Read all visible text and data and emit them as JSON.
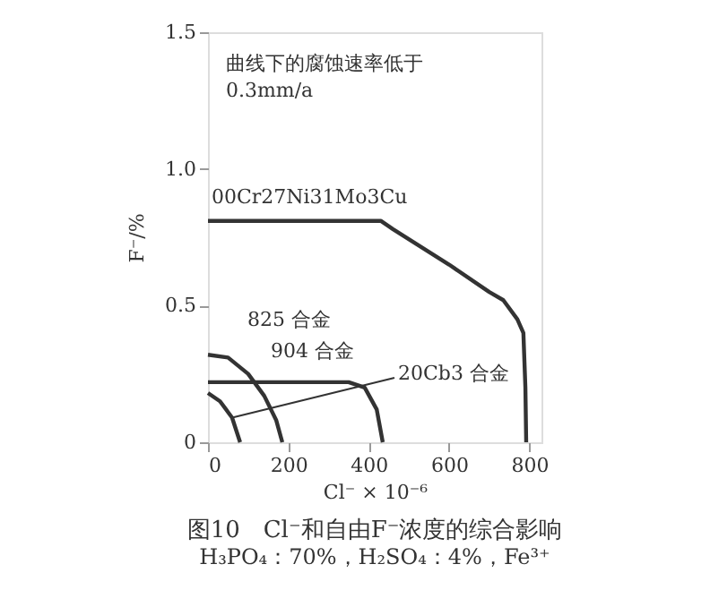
{
  "chart_data": {
    "type": "line",
    "title": "图10　Cl⁻和自由F⁻浓度的综合影响",
    "subtitle": "H₃PO₄：70%，H₂SO₄：4%，Fe³⁺",
    "xlabel": "Cl⁻ × 10⁻⁶",
    "ylabel": "F⁻/%",
    "annotations": [
      "曲线下的腐蚀速率低于\n0.3mm/a"
    ],
    "xlim": [
      0,
      830
    ],
    "xticks": [
      0,
      200,
      400,
      600,
      800
    ],
    "ylim": [
      0,
      1.5
    ],
    "yticks": [
      0,
      0.5,
      {
        "value": 1.0,
        "label": "1.0"
      },
      1.5
    ],
    "grid": false,
    "marker": "none",
    "line_style": "solid",
    "series": [
      {
        "name": "00Cr27Ni31Mo3Cu",
        "color": "#333333",
        "x": [
          0,
          430,
          460,
          600,
          700,
          735,
          770,
          785,
          790,
          792
        ],
        "values": [
          0.81,
          0.81,
          0.78,
          0.65,
          0.55,
          0.52,
          0.45,
          0.4,
          0.2,
          0
        ]
      },
      {
        "name": "825 合金",
        "color": "#333333",
        "x": [
          0,
          50,
          100,
          140,
          170,
          185
        ],
        "values": [
          0.32,
          0.31,
          0.25,
          0.17,
          0.08,
          0
        ]
      },
      {
        "name": "904 合金",
        "color": "#333333",
        "x": [
          0,
          350,
          390,
          420,
          435
        ],
        "values": [
          0.22,
          0.22,
          0.2,
          0.12,
          0
        ]
      },
      {
        "name": "20Cb3 合金",
        "color": "#333333",
        "x": [
          0,
          30,
          60,
          80
        ],
        "values": [
          0.18,
          0.15,
          0.09,
          0
        ]
      }
    ]
  }
}
